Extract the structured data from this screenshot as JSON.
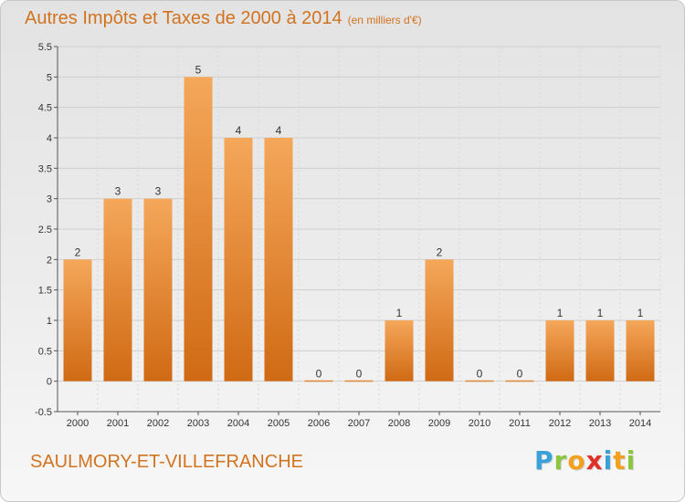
{
  "header": {
    "title": "Autres Impôts et Taxes de 2000 à 2014",
    "unit": "(en milliers d'€)"
  },
  "commune": "SAULMORY-ET-VILLEFRANCHE",
  "logo": {
    "letters": [
      "P",
      "r",
      "o",
      "x",
      "i",
      "t",
      "i"
    ],
    "colors": [
      "#3aa0d8",
      "#8cc63f",
      "#f2a01e",
      "#e0302a",
      "#3aa0d8",
      "#f2a01e",
      "#8cc63f"
    ]
  },
  "colors": {
    "bar_top": "#f5a75a",
    "bar_bottom": "#d06a14",
    "title": "#d2731f"
  },
  "chart_data": {
    "type": "bar",
    "categories": [
      "2000",
      "2001",
      "2002",
      "2003",
      "2004",
      "2005",
      "2006",
      "2007",
      "2008",
      "2009",
      "2010",
      "2011",
      "2012",
      "2013",
      "2014"
    ],
    "values": [
      2,
      3,
      3,
      5,
      4,
      4,
      0,
      0,
      1,
      2,
      0,
      0,
      1,
      1,
      1
    ],
    "ylim": [
      -0.5,
      5.5
    ],
    "yticks": [
      "-0.5",
      "0",
      "0.5",
      "1",
      "1.5",
      "2",
      "2.5",
      "3",
      "3.5",
      "4",
      "4.5",
      "5",
      "5.5"
    ],
    "grid": true,
    "title": "Autres Impôts et Taxes de 2000 à 2014",
    "xlabel": "",
    "ylabel": ""
  }
}
